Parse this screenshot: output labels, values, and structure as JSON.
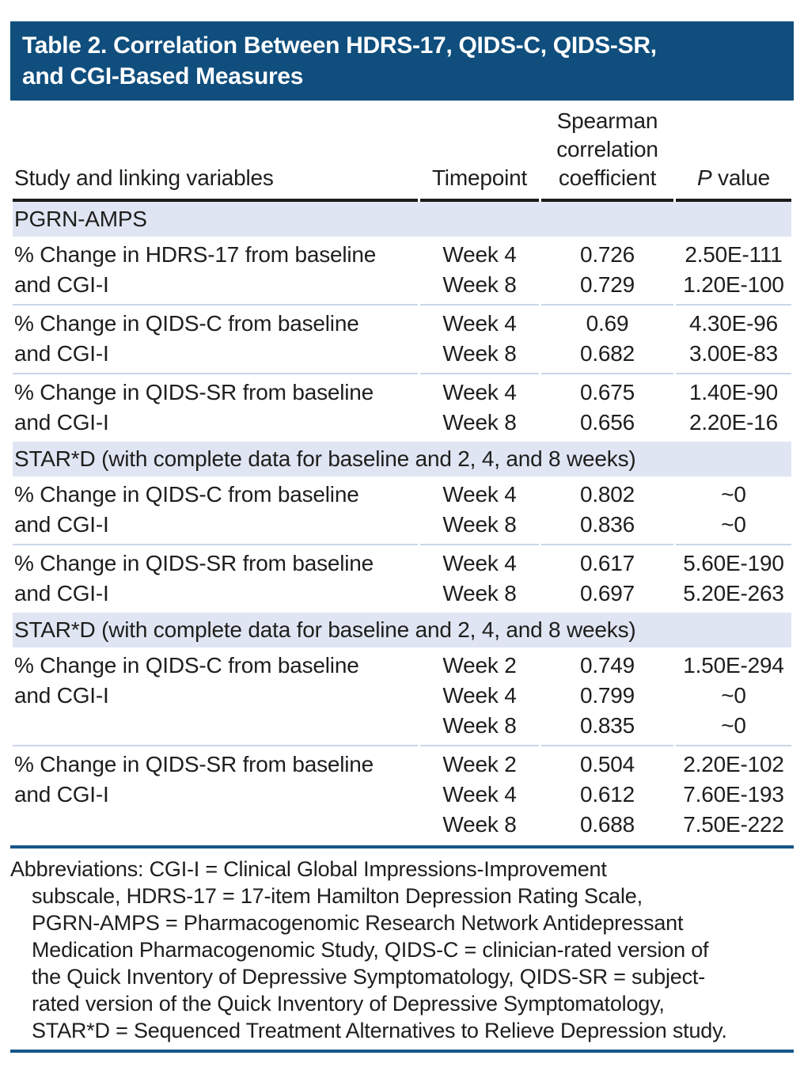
{
  "title": {
    "lines": [
      "Table 2. Correlation Between HDRS-17, QIDS-C, QIDS-SR,",
      "and CGI-Based Measures"
    ]
  },
  "columns": {
    "study": "Study and linking variables",
    "timepoint": "Timepoint",
    "spearman_lines": [
      "Spearman",
      "correlation",
      "coefficient"
    ],
    "p_italic": "P",
    "p_rest": " value"
  },
  "sections": [
    {
      "header": "PGRN-AMPS",
      "groups": [
        {
          "variable_lines": [
            "% Change in HDRS-17 from baseline",
            "and CGI-I"
          ],
          "rows": [
            {
              "timepoint": "Week 4",
              "coefficient": "0.726",
              "p_value": "2.50E-111"
            },
            {
              "timepoint": "Week 8",
              "coefficient": "0.729",
              "p_value": "1.20E-100"
            }
          ]
        },
        {
          "variable_lines": [
            "% Change in QIDS-C from baseline",
            "and CGI-I"
          ],
          "rows": [
            {
              "timepoint": "Week 4",
              "coefficient": "0.69",
              "p_value": "4.30E-96"
            },
            {
              "timepoint": "Week 8",
              "coefficient": "0.682",
              "p_value": "3.00E-83"
            }
          ]
        },
        {
          "variable_lines": [
            "% Change in QIDS-SR from baseline",
            "and CGI-I"
          ],
          "rows": [
            {
              "timepoint": "Week 4",
              "coefficient": "0.675",
              "p_value": "1.40E-90"
            },
            {
              "timepoint": "Week 8",
              "coefficient": "0.656",
              "p_value": "2.20E-16"
            }
          ]
        }
      ]
    },
    {
      "header": "STAR*D (with complete data for baseline and 2, 4, and 8 weeks)",
      "groups": [
        {
          "variable_lines": [
            "% Change in QIDS-C from baseline",
            "and CGI-I"
          ],
          "rows": [
            {
              "timepoint": "Week 4",
              "coefficient": "0.802",
              "p_value": "~0"
            },
            {
              "timepoint": "Week 8",
              "coefficient": "0.836",
              "p_value": "~0"
            }
          ]
        },
        {
          "variable_lines": [
            "% Change in QIDS-SR from baseline",
            "and CGI-I"
          ],
          "rows": [
            {
              "timepoint": "Week 4",
              "coefficient": "0.617",
              "p_value": "5.60E-190"
            },
            {
              "timepoint": "Week 8",
              "coefficient": "0.697",
              "p_value": "5.20E-263"
            }
          ]
        }
      ]
    },
    {
      "header": "STAR*D (with complete data for baseline and 2, 4, and 8 weeks)",
      "groups": [
        {
          "variable_lines": [
            "% Change in QIDS-C from baseline",
            "and CGI-I"
          ],
          "rows": [
            {
              "timepoint": "Week 2",
              "coefficient": "0.749",
              "p_value": "1.50E-294"
            },
            {
              "timepoint": "Week 4",
              "coefficient": "0.799",
              "p_value": "~0"
            },
            {
              "timepoint": "Week 8",
              "coefficient": "0.835",
              "p_value": "~0"
            }
          ]
        },
        {
          "variable_lines": [
            "% Change in QIDS-SR from baseline",
            "and CGI-I"
          ],
          "rows": [
            {
              "timepoint": "Week 2",
              "coefficient": "0.504",
              "p_value": "2.20E-102"
            },
            {
              "timepoint": "Week 4",
              "coefficient": "0.612",
              "p_value": "7.60E-193"
            },
            {
              "timepoint": "Week 8",
              "coefficient": "0.688",
              "p_value": "7.50E-222"
            }
          ]
        }
      ]
    }
  ],
  "footnote": {
    "lines": [
      "Abbreviations: CGI-I = Clinical Global Impressions-Improvement",
      "subscale, HDRS-17 = 17-item Hamilton Depression Rating Scale,",
      "PGRN-AMPS = Pharmacogenomic Research Network Antidepressant",
      "Medication Pharmacogenomic Study, QIDS-C = clinician-rated version of",
      "the Quick Inventory of Depressive Symptomatology, QIDS-SR = subject-",
      "rated version of the Quick Inventory of Depressive Symptomatology,",
      "STAR*D = Sequenced Treatment Alternatives to Relieve Depression study."
    ]
  },
  "colors": {
    "title_bg": "#0f4e7d",
    "title_text": "#ffffff",
    "band_bg": "#e0e5f3",
    "separator": "#c9d6e8",
    "rule_black": "#1b1b1b",
    "rule_blue": "#16568b",
    "text": "#1e1e1c"
  }
}
